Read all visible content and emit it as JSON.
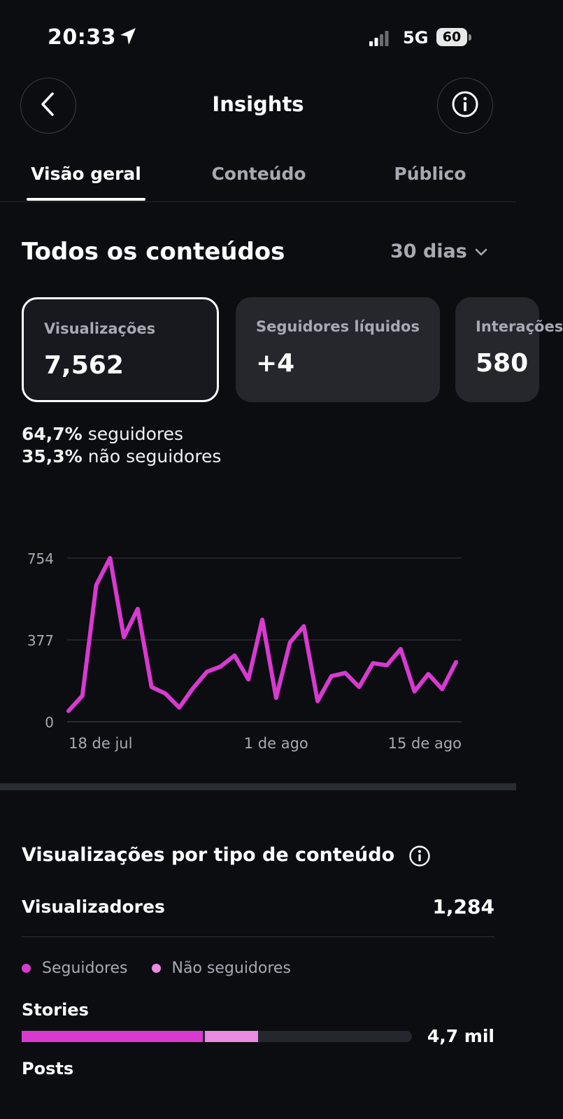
{
  "status_bar": {
    "time": "20:33",
    "network": "5G",
    "battery": "60",
    "location_icon": "location-arrow-icon",
    "signal_icon": "signal-bars-icon"
  },
  "header": {
    "title": "Insights",
    "back_icon": "chevron-left-icon",
    "info_icon": "info-icon"
  },
  "tabs": [
    {
      "label": "Visão geral",
      "active": true
    },
    {
      "label": "Conteúdo",
      "active": false
    },
    {
      "label": "Público",
      "active": false
    }
  ],
  "section": {
    "title": "Todos os conteúdos",
    "range": "30 dias"
  },
  "metrics": [
    {
      "label": "Visualizações",
      "value": "7,562",
      "selected": true
    },
    {
      "label": "Seguidores líquidos",
      "value": "+4",
      "selected": false
    },
    {
      "label": "Interações",
      "value": "580",
      "selected": false
    }
  ],
  "split": {
    "followers_pct": "64,7%",
    "followers_text": "seguidores",
    "nonfollowers_pct": "35,3%",
    "nonfollowers_text": "não seguidores"
  },
  "chart_data": {
    "type": "line",
    "series": [
      {
        "values": [
          50,
          120,
          630,
          754,
          390,
          520,
          160,
          130,
          65,
          155,
          230,
          255,
          305,
          195,
          470,
          110,
          365,
          440,
          95,
          210,
          225,
          160,
          270,
          260,
          335,
          140,
          220,
          150,
          275
        ]
      }
    ],
    "x_tick_labels": [
      "18 de jul",
      "1 de ago",
      "15 de ago"
    ],
    "y_ticks": [
      0,
      377,
      754
    ],
    "ylim": [
      0,
      754
    ],
    "grid": true,
    "color": "#d83ad0"
  },
  "content_type": {
    "title": "Visualizações por tipo de conteúdo",
    "viewers_label": "Visualizadores",
    "viewers_value": "1,284",
    "legend_followers": "Seguidores",
    "legend_nonfollowers": "Não seguidores",
    "rows": [
      {
        "label": "Stories",
        "followers_fraction": 0.465,
        "nonfollowers_fraction": 0.14,
        "value": "4,7 mil"
      },
      {
        "label": "Posts"
      }
    ],
    "colors": {
      "followers": "#d83ad0",
      "nonfollowers": "#e98be0"
    }
  }
}
